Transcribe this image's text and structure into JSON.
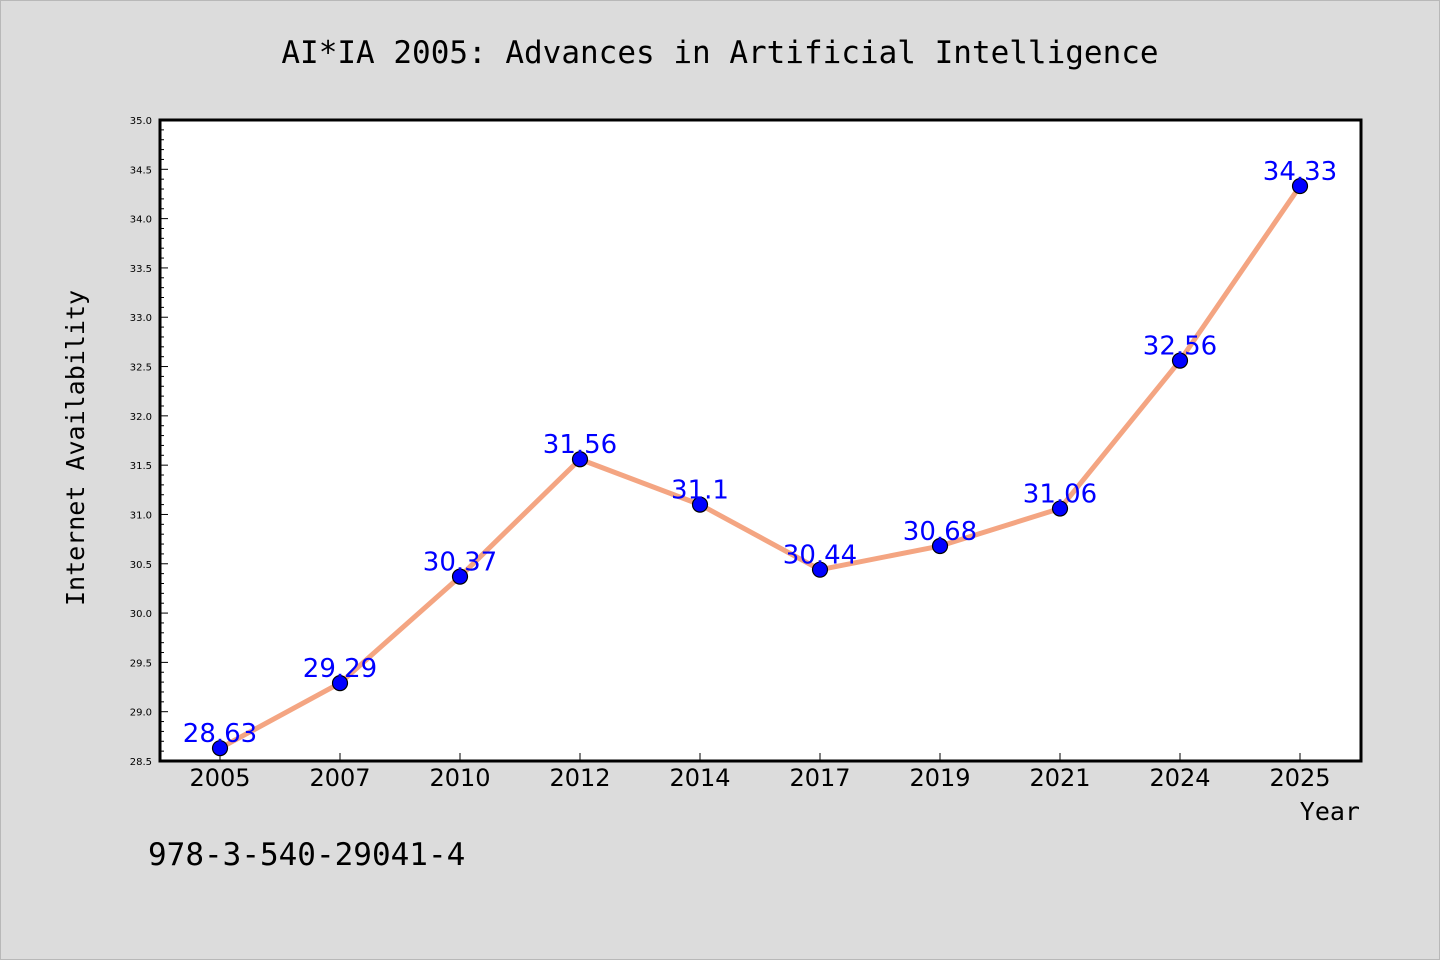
{
  "chart_data": {
    "type": "line",
    "title": "AI*IA 2005: Advances in Artificial Intelligence",
    "xlabel": "Year",
    "ylabel": "Internet Availability",
    "categories": [
      "2005",
      "2007",
      "2010",
      "2012",
      "2014",
      "2017",
      "2019",
      "2021",
      "2024",
      "2025"
    ],
    "series": [
      {
        "values": [
          28.63,
          29.29,
          30.37,
          31.56,
          31.1,
          30.44,
          30.68,
          31.06,
          32.56,
          34.33
        ],
        "data_labels": [
          "28.63",
          "29.29",
          "30.37",
          "31.56",
          "31.1",
          "30.44",
          "30.68",
          "31.06",
          "32.56",
          "34.33"
        ],
        "line_color": "#f4a582",
        "marker_color": "#0000ff",
        "label_color": "#0000ff"
      }
    ],
    "ylim": [
      28.5,
      35.0
    ],
    "yticks": [
      "28.5",
      "29.0",
      "29.5",
      "30.0",
      "30.5",
      "31.0",
      "31.5",
      "32.0",
      "32.5",
      "33.0",
      "33.5",
      "34.0",
      "34.5",
      "35.0"
    ],
    "grid": false,
    "legend": "none"
  },
  "footer_text": "978-3-540-29041-4",
  "colors": {
    "background": "#dcdcdc",
    "plot_background": "#ffffff",
    "axis": "#000000"
  }
}
